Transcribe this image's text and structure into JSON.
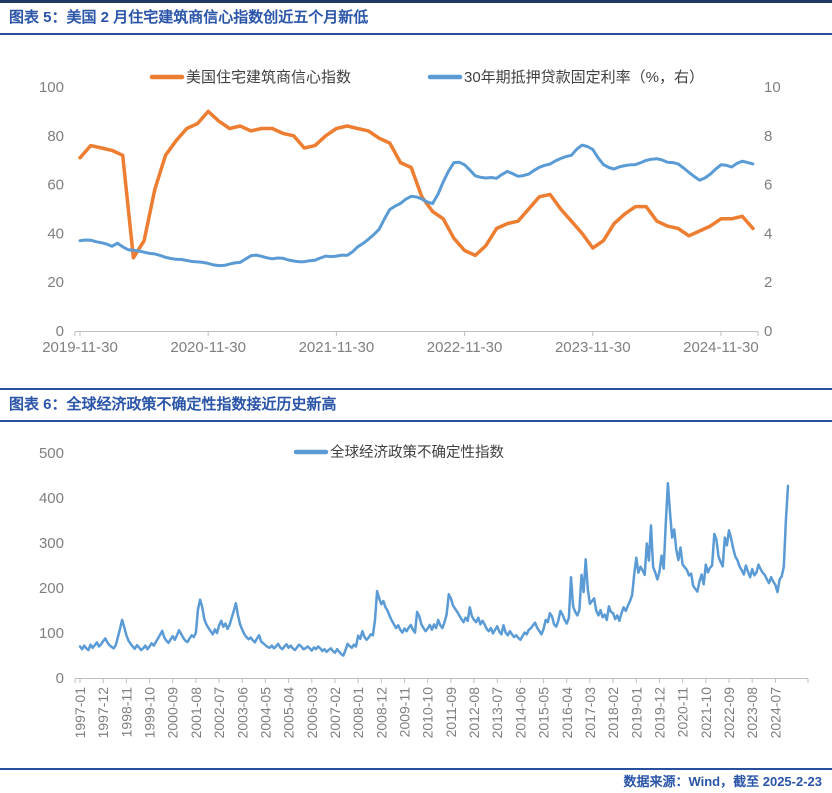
{
  "accent": {
    "top_rule": "#1f3864",
    "header_rule": "#274f9e",
    "title_text": "#2a55a8",
    "source_text": "#2a55a8",
    "orange": "#ED7D31",
    "blue": "#5B9BD5",
    "axis_line": "#bfbfbf",
    "tick_label": "#7f7f7f",
    "legend_text": "#404040"
  },
  "figure5": {
    "title": "图表 5：美国 2 月住宅建筑商信心指数创近五个月新低"
  },
  "figure6": {
    "title": "图表 6：全球经济政策不确定性指数接近历史新高"
  },
  "footer": {
    "source": "数据来源：Wind，截至 2025-2-23"
  },
  "chart_data": [
    {
      "type": "line",
      "title": "图表 5：美国 2 月住宅建筑商信心指数创近五个月新低",
      "xlabel": "",
      "ylabel": "",
      "grid": false,
      "legend_position": "top",
      "x_tick_labels": [
        "2019-11-30",
        "2020-11-30",
        "2021-11-30",
        "2022-11-30",
        "2023-11-30",
        "2024-11-30"
      ],
      "x_tick_interval_months": 12,
      "total_months": 63,
      "left_axis": {
        "min": 0,
        "max": 100,
        "ticks": [
          0,
          20,
          40,
          60,
          80,
          100
        ]
      },
      "right_axis": {
        "min": 0,
        "max": 10,
        "ticks": [
          0,
          2,
          4,
          6,
          8,
          10
        ]
      },
      "series": [
        {
          "name": "美国住宅建筑商信心指数",
          "axis": "left",
          "color": "#ED7D31",
          "start": "2019-11",
          "end": "2025-02",
          "frequency": "monthly",
          "values": [
            71,
            76,
            75,
            74,
            72,
            30,
            37,
            58,
            72,
            78,
            83,
            85,
            90,
            86,
            83,
            84,
            82,
            83,
            83,
            81,
            80,
            75,
            76,
            80,
            83,
            84,
            83,
            82,
            79,
            77,
            69,
            67,
            55,
            49,
            46,
            38,
            33,
            31,
            35,
            42,
            44,
            45,
            50,
            55,
            56,
            50,
            45,
            40,
            34,
            37,
            44,
            48,
            51,
            51,
            45,
            43,
            42,
            39,
            41,
            43,
            46,
            46,
            47,
            42
          ]
        },
        {
          "name": "30年期抵押贷款固定利率（%，右）",
          "axis": "right",
          "color": "#5B9BD5",
          "start": "2019-11",
          "end": "2025-02",
          "frequency": "semimonthly",
          "values": [
            3.7,
            3.73,
            3.72,
            3.66,
            3.62,
            3.56,
            3.47,
            3.6,
            3.45,
            3.33,
            3.31,
            3.28,
            3.23,
            3.18,
            3.16,
            3.1,
            3.02,
            2.97,
            2.94,
            2.93,
            2.89,
            2.85,
            2.83,
            2.81,
            2.77,
            2.71,
            2.68,
            2.69,
            2.74,
            2.79,
            2.81,
            2.95,
            3.08,
            3.11,
            3.06,
            3.0,
            2.96,
            2.99,
            2.98,
            2.91,
            2.87,
            2.84,
            2.84,
            2.88,
            2.9,
            2.99,
            3.07,
            3.05,
            3.07,
            3.11,
            3.1,
            3.24,
            3.45,
            3.59,
            3.76,
            3.95,
            4.17,
            4.6,
            4.98,
            5.12,
            5.23,
            5.4,
            5.52,
            5.49,
            5.41,
            5.29,
            5.22,
            5.6,
            6.11,
            6.55,
            6.9,
            6.92,
            6.81,
            6.6,
            6.36,
            6.3,
            6.27,
            6.29,
            6.26,
            6.42,
            6.54,
            6.45,
            6.34,
            6.37,
            6.43,
            6.58,
            6.71,
            6.79,
            6.84,
            6.97,
            7.07,
            7.15,
            7.2,
            7.45,
            7.62,
            7.56,
            7.44,
            7.1,
            6.82,
            6.7,
            6.64,
            6.73,
            6.78,
            6.81,
            6.82,
            6.9,
            6.99,
            7.04,
            7.06,
            7.01,
            6.92,
            6.9,
            6.85,
            6.68,
            6.5,
            6.33,
            6.18,
            6.27,
            6.43,
            6.63,
            6.81,
            6.79,
            6.72,
            6.87,
            6.96,
            6.9,
            6.85
          ]
        }
      ]
    },
    {
      "type": "line",
      "title": "图表 6：全球经济政策不确定性指数接近历史新高",
      "xlabel": "",
      "ylabel": "",
      "grid": false,
      "legend_position": "top",
      "x_tick_labels": [
        "1997-01",
        "1997-12",
        "1998-11",
        "1999-10",
        "2000-09",
        "2001-08",
        "2002-07",
        "2003-06",
        "2004-05",
        "2005-04",
        "2006-03",
        "2007-02",
        "2008-01",
        "2008-12",
        "2009-11",
        "2010-10",
        "2011-09",
        "2012-08",
        "2013-07",
        "2014-06",
        "2015-05",
        "2016-04",
        "2017-03",
        "2018-02",
        "2019-01",
        "2019-12",
        "2020-11",
        "2021-10",
        "2022-09",
        "2023-08",
        "2024-07"
      ],
      "x_tick_interval_months": 11,
      "total_months": 336,
      "left_axis": {
        "min": 0,
        "max": 500,
        "ticks": [
          0,
          100,
          200,
          300,
          400,
          500
        ]
      },
      "series": [
        {
          "name": "全球经济政策不确定性指数",
          "axis": "left",
          "color": "#5B9BD5",
          "start": "1997-01",
          "end": "2025-01",
          "frequency": "monthly",
          "values": [
            70,
            64,
            72,
            66,
            62,
            74,
            67,
            73,
            79,
            70,
            75,
            82,
            88,
            79,
            73,
            69,
            66,
            73,
            91,
            109,
            129,
            113,
            95,
            83,
            76,
            70,
            65,
            73,
            68,
            62,
            66,
            72,
            64,
            70,
            77,
            72,
            80,
            88,
            96,
            105,
            90,
            83,
            78,
            86,
            93,
            85,
            95,
            106,
            98,
            89,
            83,
            80,
            88,
            95,
            91,
            101,
            153,
            174,
            158,
            131,
            119,
            111,
            104,
            97,
            108,
            100,
            117,
            127,
            114,
            121,
            109,
            118,
            134,
            149,
            166,
            139,
            119,
            107,
            97,
            91,
            86,
            90,
            84,
            79,
            88,
            95,
            81,
            77,
            73,
            69,
            67,
            72,
            66,
            70,
            76,
            68,
            64,
            70,
            75,
            67,
            72,
            66,
            62,
            68,
            74,
            70,
            64,
            66,
            70,
            66,
            61,
            68,
            64,
            70,
            66,
            60,
            64,
            58,
            62,
            66,
            60,
            56,
            64,
            58,
            53,
            50,
            62,
            76,
            71,
            67,
            74,
            70,
            94,
            87,
            104,
            91,
            85,
            90,
            97,
            95,
            129,
            193,
            177,
            164,
            171,
            157,
            149,
            137,
            127,
            119,
            111,
            117,
            107,
            101,
            110,
            104,
            112,
            118,
            107,
            101,
            147,
            137,
            119,
            111,
            104,
            110,
            118,
            107,
            119,
            111,
            129,
            117,
            111,
            124,
            141,
            186,
            177,
            161,
            154,
            147,
            139,
            131,
            124,
            134,
            127,
            157,
            137,
            129,
            124,
            134,
            119,
            127,
            119,
            109,
            104,
            111,
            99,
            107,
            115,
            103,
            97,
            117,
            101,
            95,
            104,
            97,
            91,
            95,
            89,
            85,
            93,
            101,
            97,
            107,
            111,
            117,
            123,
            111,
            104,
            97,
            109,
            129,
            124,
            144,
            137,
            119,
            114,
            127,
            149,
            141,
            129,
            121,
            134,
            224,
            159,
            147,
            139,
            151,
            229,
            191,
            264,
            197,
            165,
            171,
            177,
            149,
            139,
            151,
            135,
            141,
            129,
            159,
            147,
            144,
            131,
            139,
            127,
            144,
            157,
            149,
            161,
            171,
            184,
            230,
            267,
            234,
            247,
            239,
            229,
            299,
            261,
            339,
            247,
            234,
            219,
            237,
            272,
            243,
            345,
            433,
            368,
            312,
            330,
            285,
            262,
            290,
            252,
            246,
            240,
            228,
            232,
            205,
            198,
            192,
            215,
            230,
            208,
            252,
            235,
            245,
            250,
            320,
            308,
            270,
            258,
            248,
            312,
            295,
            328,
            310,
            288,
            270,
            262,
            248,
            240,
            230,
            250,
            236,
            224,
            242,
            228,
            234,
            252,
            242,
            234,
            229,
            219,
            211,
            224,
            214,
            207,
            191,
            219,
            226,
            247,
            351,
            427
          ]
        }
      ]
    }
  ]
}
